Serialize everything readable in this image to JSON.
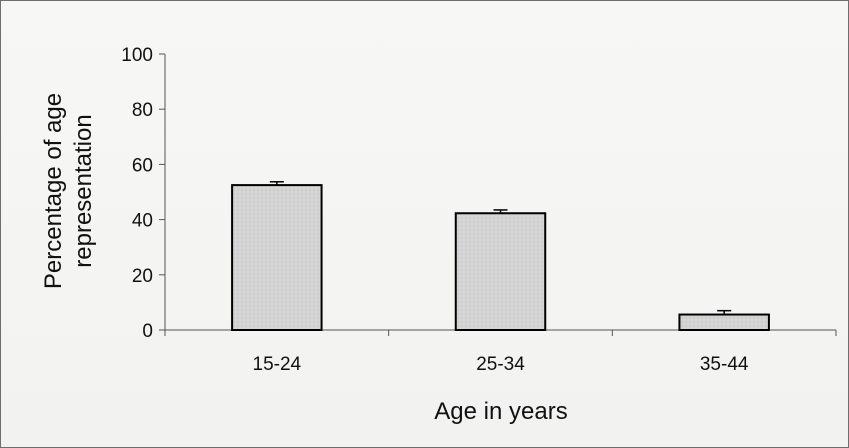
{
  "chart_data": {
    "type": "bar",
    "title": "",
    "xlabel": "Age in years",
    "ylabel_lines": [
      "Percentage of age",
      "representation"
    ],
    "categories": [
      "15-24",
      "25-34",
      "35-44"
    ],
    "values": [
      52.5,
      42.3,
      5.6
    ],
    "error_bars_plus": [
      1.2,
      1.2,
      1.4
    ],
    "ylim": [
      0,
      100
    ],
    "yticks": [
      0,
      20,
      40,
      60,
      80,
      100
    ],
    "grid": false,
    "legend": "none",
    "colors": {
      "bar_fill": "#d3d3d3",
      "bar_stroke": "#000000",
      "axis": "#555555",
      "background": "#f4f4f3"
    }
  }
}
